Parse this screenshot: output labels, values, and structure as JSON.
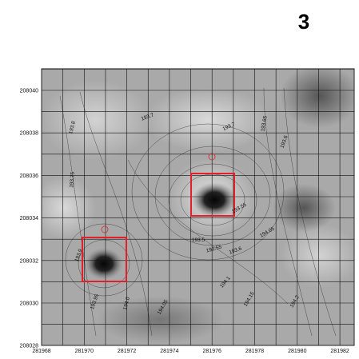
{
  "panel_label": "3",
  "x_ticks": [
    "281968",
    "281970",
    "281972",
    "281974",
    "281976",
    "281978",
    "281980",
    "281982"
  ],
  "y_ticks": [
    "208040",
    "208038",
    "208036",
    "208034",
    "208032",
    "208030",
    "208028"
  ],
  "contour_labels": [
    "193.8",
    "193.75",
    "193.7",
    "193.7",
    "193.65",
    "193.6",
    "193.55",
    "193.5",
    "193.55",
    "193.6",
    "194.05",
    "193.9",
    "193.95",
    "194.0",
    "194.05",
    "194.1",
    "194.15",
    "194.2"
  ]
}
